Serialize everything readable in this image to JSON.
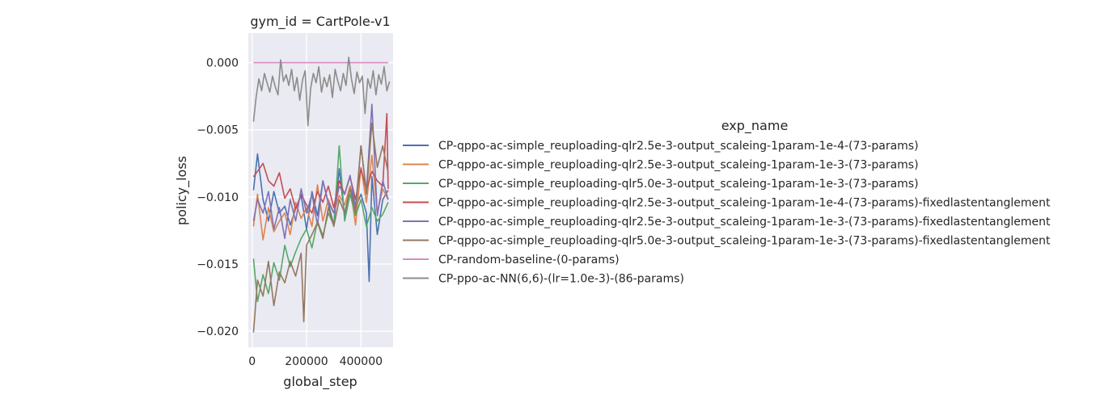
{
  "chart_data": {
    "type": "line",
    "title": "gym_id = CartPole-v1",
    "xlabel": "global_step",
    "ylabel": "policy_loss",
    "xlim": [
      -14000,
      518000
    ],
    "ylim": [
      -0.0212,
      0.0022
    ],
    "x_ticks": [
      0,
      200000,
      400000
    ],
    "x_tick_labels": [
      "0",
      "200000",
      "400000"
    ],
    "y_ticks": [
      0.0,
      -0.005,
      -0.01,
      -0.015,
      -0.02
    ],
    "y_tick_labels": [
      "0.000",
      "−0.005",
      "−0.010",
      "−0.015",
      "−0.020"
    ],
    "grid": true,
    "background": "#eaeaf2",
    "legend_title": "exp_name",
    "legend_position": "right",
    "series": [
      {
        "name": "CP-qppo-ac-simple_reuploading-qlr2.5e-3-output_scaleing-1param-1e-4-(73-params)",
        "color": "#4c72b0",
        "x": [
          5000,
          20000,
          40000,
          60000,
          80000,
          100000,
          120000,
          140000,
          160000,
          180000,
          200000,
          220000,
          240000,
          260000,
          280000,
          300000,
          320000,
          340000,
          360000,
          380000,
          400000,
          420000,
          430000,
          440000,
          460000,
          480000,
          500000
        ],
        "y": [
          -0.0095,
          -0.0068,
          -0.0102,
          -0.0118,
          -0.0096,
          -0.0112,
          -0.0107,
          -0.0121,
          -0.0109,
          -0.0099,
          -0.0124,
          -0.0096,
          -0.0114,
          -0.0088,
          -0.0105,
          -0.0121,
          -0.0079,
          -0.0115,
          -0.0092,
          -0.0108,
          -0.0098,
          -0.0112,
          -0.0163,
          -0.0085,
          -0.0128,
          -0.0102,
          -0.0095
        ]
      },
      {
        "name": "CP-qppo-ac-simple_reuploading-qlr2.5e-3-output_scaleing-1param-1e-3-(73-params)",
        "color": "#dd8452",
        "x": [
          5000,
          20000,
          40000,
          60000,
          80000,
          100000,
          120000,
          140000,
          160000,
          180000,
          200000,
          220000,
          240000,
          260000,
          280000,
          300000,
          320000,
          340000,
          360000,
          380000,
          400000,
          420000,
          440000,
          460000,
          480000,
          500000
        ],
        "y": [
          -0.0122,
          -0.0098,
          -0.0132,
          -0.0108,
          -0.0126,
          -0.0118,
          -0.0112,
          -0.0128,
          -0.0104,
          -0.0116,
          -0.0108,
          -0.0122,
          -0.0091,
          -0.0118,
          -0.0102,
          -0.0112,
          -0.0099,
          -0.0106,
          -0.0092,
          -0.0121,
          -0.0078,
          -0.0104,
          -0.0069,
          -0.0112,
          -0.0094,
          -0.0102
        ]
      },
      {
        "name": "CP-qppo-ac-simple_reuploading-qlr5.0e-3-output_scaleing-1param-1e-3-(73-params)",
        "color": "#55a868",
        "x": [
          5000,
          20000,
          40000,
          60000,
          80000,
          100000,
          120000,
          140000,
          160000,
          180000,
          200000,
          220000,
          240000,
          260000,
          280000,
          300000,
          320000,
          340000,
          360000,
          380000,
          400000,
          420000,
          440000,
          460000,
          480000,
          500000
        ],
        "y": [
          -0.0146,
          -0.0178,
          -0.0158,
          -0.0172,
          -0.0149,
          -0.0162,
          -0.0136,
          -0.0152,
          -0.0141,
          -0.0131,
          -0.0124,
          -0.0138,
          -0.0118,
          -0.0129,
          -0.0112,
          -0.0121,
          -0.0062,
          -0.0118,
          -0.0098,
          -0.0114,
          -0.0102,
          -0.0122,
          -0.0108,
          -0.0118,
          -0.0113,
          -0.0104
        ]
      },
      {
        "name": "CP-qppo-ac-simple_reuploading-qlr2.5e-3-output_scaleing-1param-1e-4-(73-params)-fixedlastentanglement",
        "color": "#c44e52",
        "x": [
          5000,
          20000,
          40000,
          60000,
          80000,
          100000,
          120000,
          140000,
          160000,
          180000,
          200000,
          220000,
          240000,
          260000,
          280000,
          300000,
          320000,
          340000,
          360000,
          380000,
          400000,
          420000,
          440000,
          460000,
          480000,
          495000,
          500000
        ],
        "y": [
          -0.0085,
          -0.0081,
          -0.0075,
          -0.0088,
          -0.0092,
          -0.0082,
          -0.0101,
          -0.0094,
          -0.0109,
          -0.0098,
          -0.0106,
          -0.0112,
          -0.0096,
          -0.0104,
          -0.0092,
          -0.0108,
          -0.0088,
          -0.0098,
          -0.0085,
          -0.0102,
          -0.0079,
          -0.0095,
          -0.0081,
          -0.0088,
          -0.0092,
          -0.0038,
          -0.0094
        ]
      },
      {
        "name": "CP-qppo-ac-simple_reuploading-qlr2.5e-3-output_scaleing-1param-1e-3-(73-params)-fixedlastentanglement",
        "color": "#8172b3",
        "x": [
          5000,
          20000,
          40000,
          60000,
          80000,
          100000,
          120000,
          140000,
          160000,
          180000,
          200000,
          220000,
          240000,
          260000,
          280000,
          300000,
          320000,
          340000,
          360000,
          380000,
          400000,
          420000,
          440000,
          460000,
          480000,
          500000
        ],
        "y": [
          -0.0118,
          -0.0102,
          -0.0112,
          -0.0096,
          -0.0124,
          -0.0108,
          -0.0131,
          -0.0102,
          -0.0118,
          -0.0094,
          -0.0112,
          -0.0098,
          -0.0121,
          -0.0088,
          -0.0104,
          -0.0112,
          -0.0092,
          -0.0098,
          -0.0084,
          -0.0108,
          -0.0062,
          -0.0096,
          -0.0031,
          -0.0114,
          -0.0088,
          -0.0102
        ]
      },
      {
        "name": "CP-qppo-ac-simple_reuploading-qlr5.0e-3-output_scaleing-1param-1e-3-(73-params)-fixedlastentanglement",
        "color": "#937860",
        "x": [
          5000,
          20000,
          40000,
          60000,
          80000,
          100000,
          120000,
          140000,
          160000,
          180000,
          190000,
          200000,
          220000,
          240000,
          260000,
          280000,
          300000,
          320000,
          340000,
          360000,
          380000,
          400000,
          420000,
          440000,
          460000,
          480000,
          500000
        ],
        "y": [
          -0.0201,
          -0.0162,
          -0.0174,
          -0.0148,
          -0.0181,
          -0.0156,
          -0.0164,
          -0.0148,
          -0.0159,
          -0.0142,
          -0.0193,
          -0.0136,
          -0.0128,
          -0.0119,
          -0.0131,
          -0.0108,
          -0.0122,
          -0.0102,
          -0.0112,
          -0.0094,
          -0.0112,
          -0.0062,
          -0.0098,
          -0.0045,
          -0.0078,
          -0.0062,
          -0.0082
        ]
      },
      {
        "name": "CP-random-baseline-(0-params)",
        "color": "#da8bc3",
        "x": [
          5000,
          500000
        ],
        "y": [
          0.0,
          0.0
        ]
      },
      {
        "name": "CP-ppo-ac-NN(6,6)-(lr=1.0e-3)-(86-params)",
        "color": "#8c8c8c",
        "x": [
          5000,
          15000,
          25000,
          35000,
          45000,
          55000,
          65000,
          75000,
          85000,
          95000,
          105000,
          115000,
          125000,
          135000,
          145000,
          155000,
          165000,
          175000,
          185000,
          195000,
          205000,
          215000,
          225000,
          235000,
          245000,
          255000,
          265000,
          275000,
          285000,
          295000,
          305000,
          315000,
          325000,
          335000,
          345000,
          355000,
          365000,
          375000,
          385000,
          395000,
          405000,
          415000,
          425000,
          435000,
          445000,
          455000,
          465000,
          475000,
          485000,
          495000,
          505000
        ],
        "y": [
          -0.0044,
          -0.0025,
          -0.0012,
          -0.0021,
          -0.0008,
          -0.0015,
          -0.0022,
          -0.001,
          -0.0018,
          -0.0024,
          0.0002,
          -0.0014,
          -0.0009,
          -0.0017,
          -0.0005,
          -0.0021,
          -0.0011,
          -0.0028,
          -0.0013,
          -0.0006,
          -0.0047,
          -0.0019,
          -0.0008,
          -0.0015,
          -0.0003,
          -0.0022,
          -0.0011,
          -0.0018,
          -0.0009,
          -0.0026,
          -0.0005,
          -0.0014,
          -0.0021,
          -0.0008,
          -0.0017,
          0.0004,
          -0.0012,
          -0.0023,
          -0.0007,
          -0.0015,
          -0.001,
          -0.0038,
          -0.0012,
          -0.0019,
          -0.0006,
          -0.0024,
          -0.0009,
          -0.0016,
          -0.0003,
          -0.0021,
          -0.0014
        ]
      }
    ]
  }
}
